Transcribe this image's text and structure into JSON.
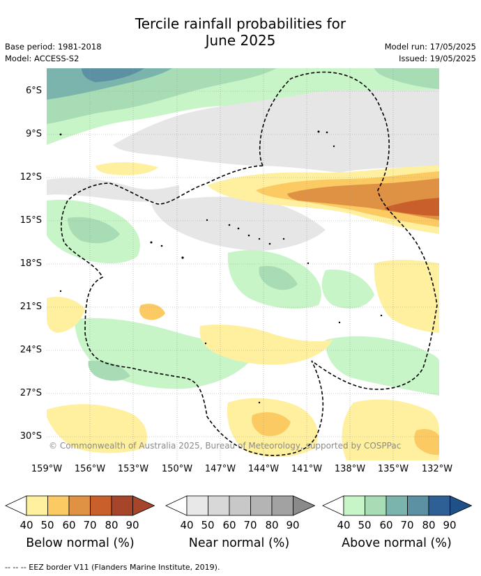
{
  "title_line1": "Tercile rainfall probabilities for",
  "title_line2": "June 2025",
  "base_period": "Base period: 1981-2018",
  "model": "Model: ACCESS-S2",
  "model_run": "Model run: 17/05/2025",
  "issued": "Issued: 19/05/2025",
  "map": {
    "lat_labels": [
      "6°S",
      "9°S",
      "12°S",
      "15°S",
      "18°S",
      "21°S",
      "24°S",
      "27°S",
      "30°S"
    ],
    "lon_labels": [
      "159°W",
      "156°W",
      "153°W",
      "150°W",
      "147°W",
      "144°W",
      "141°W",
      "138°W",
      "135°W",
      "132°W"
    ],
    "copyright": "© Commonwealth of Australia 2025, Bureau of Meteorology, supported by COSPPac"
  },
  "legend": {
    "ticks": [
      "40",
      "50",
      "60",
      "70",
      "80",
      "90"
    ],
    "below": {
      "label": "Below normal (%)",
      "colors": [
        "#ffffff",
        "#fff0a0",
        "#fcca63",
        "#df9243",
        "#c9602c",
        "#a6452a",
        "#a6452a"
      ]
    },
    "near": {
      "label": "Near normal (%)",
      "colors": [
        "#ffffff",
        "#e8e8e8",
        "#d8d8d8",
        "#c8c8c8",
        "#b4b4b4",
        "#a2a2a2",
        "#8a8a8a"
      ]
    },
    "above": {
      "label": "Above normal (%)",
      "colors": [
        "#ffffff",
        "#c8f5c8",
        "#a8dcb4",
        "#7ab4ac",
        "#5b91a3",
        "#2e6096",
        "#205088"
      ]
    }
  },
  "footer": "-- -- -- EEZ border V11 (Flanders Marine Institute, 2019)."
}
